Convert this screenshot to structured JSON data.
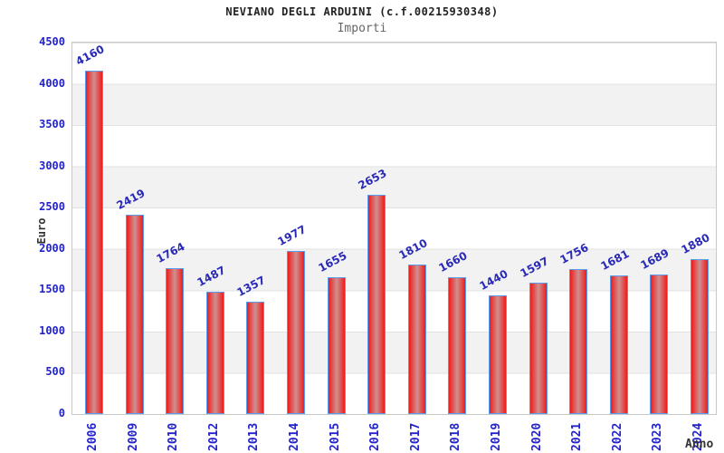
{
  "header": {
    "title": "NEVIANO DEGLI ARDUINI (c.f.00215930348)",
    "subtitle": "Importi"
  },
  "chart_data": {
    "type": "bar",
    "title": "NEVIANO DEGLI ARDUINI (c.f.00215930348)",
    "subtitle": "Importi",
    "xlabel": "Anno",
    "ylabel": "Euro",
    "categories": [
      "2006",
      "2009",
      "2010",
      "2012",
      "2013",
      "2014",
      "2015",
      "2016",
      "2017",
      "2018",
      "2019",
      "2020",
      "2021",
      "2022",
      "2023",
      "2024"
    ],
    "values": [
      4160,
      2419,
      1764,
      1487,
      1357,
      1977,
      1655,
      2653,
      1810,
      1660,
      1440,
      1597,
      1756,
      1681,
      1689,
      1880
    ],
    "ylim": [
      0,
      4500
    ],
    "yticks": [
      0,
      500,
      1000,
      1500,
      2000,
      2500,
      3000,
      3500,
      4000,
      4500
    ],
    "grid": "horizontal gridlines with alternating white/gray bands",
    "legend": "none",
    "bar_value_labels": "rotated above bars"
  },
  "colors": {
    "axis_text_blue": "#2323cc",
    "value_label_blue": "#2a2ab8",
    "bar_red": "#ee1c1c",
    "bar_center_light": "#cf9090",
    "bar_border_blue": "#5b9bee",
    "band_gray": "#f2f2f2",
    "grid_line": "#e2e2e2",
    "plot_border": "#c8c8c8",
    "title_text": "#222222",
    "subtitle_text": "#666666",
    "dark_label": "#333333"
  }
}
